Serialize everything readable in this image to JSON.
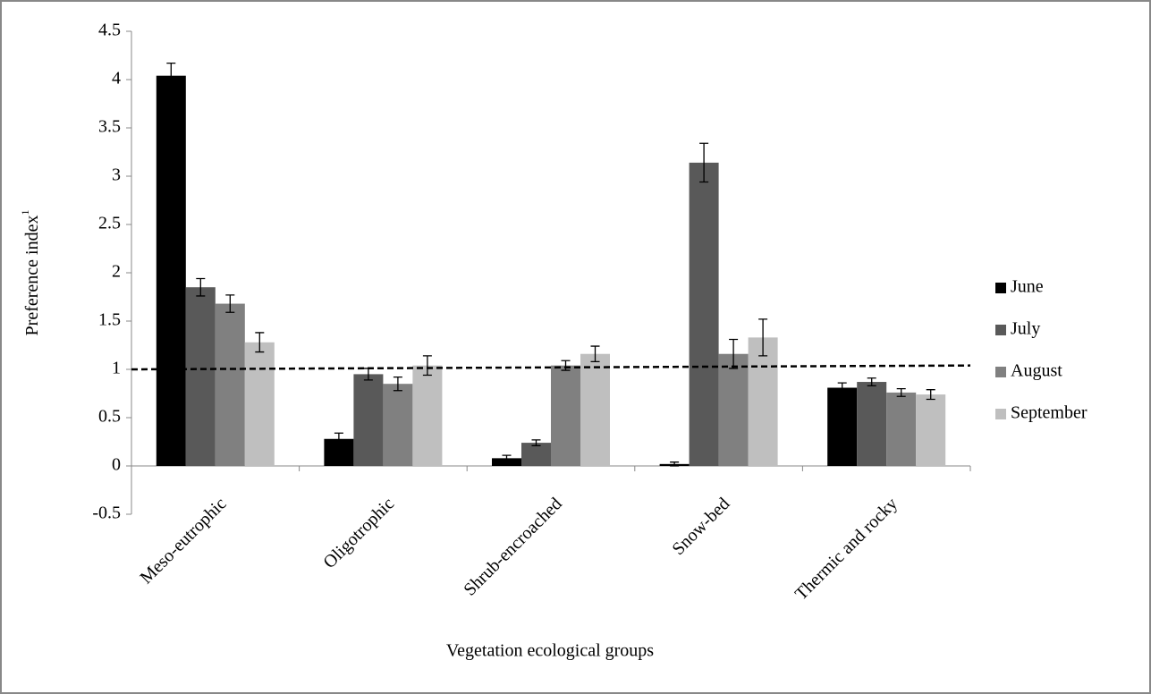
{
  "chart_data": {
    "type": "bar",
    "x_label": "Vegetation ecological groups",
    "y_label": "Preference index",
    "y_label_sup": "1",
    "categories": [
      "Meso-eutrophic",
      "Oligotrophic",
      "Shrub-encroached",
      "Snow-bed",
      "Thermic and rocky"
    ],
    "series": [
      {
        "name": "June",
        "color": "#000000",
        "values": [
          4.04,
          0.28,
          0.08,
          0.02,
          0.81
        ],
        "errors": [
          0.13,
          0.06,
          0.03,
          0.02,
          0.05
        ]
      },
      {
        "name": "July",
        "color": "#595959",
        "values": [
          1.85,
          0.95,
          0.24,
          3.14,
          0.87
        ],
        "errors": [
          0.09,
          0.06,
          0.03,
          0.2,
          0.04
        ]
      },
      {
        "name": "August",
        "color": "#808080",
        "values": [
          1.68,
          0.85,
          1.04,
          1.16,
          0.76
        ],
        "errors": [
          0.09,
          0.07,
          0.05,
          0.15,
          0.04
        ]
      },
      {
        "name": "September",
        "color": "#bfbfbf",
        "values": [
          1.28,
          1.04,
          1.16,
          1.33,
          0.74
        ],
        "errors": [
          0.1,
          0.1,
          0.08,
          0.19,
          0.05
        ]
      }
    ],
    "reference_line": [
      1,
      1.04
    ],
    "ylim": [
      -0.5,
      4.5
    ],
    "yticks": [
      -0.5,
      0,
      0.5,
      1,
      1.5,
      2,
      2.5,
      3,
      3.5,
      4,
      4.5
    ],
    "legend": "right"
  }
}
